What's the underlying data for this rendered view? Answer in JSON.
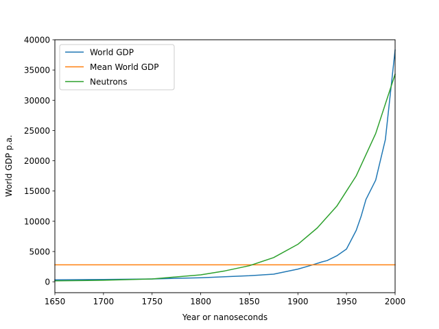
{
  "chart_data": {
    "type": "line",
    "title": "",
    "xlabel": "Year or nanoseconds",
    "ylabel": "World GDP p.a.",
    "xlim": [
      1650,
      2000
    ],
    "ylim": [
      -1800,
      40000
    ],
    "xticks": [
      1650,
      1700,
      1750,
      1800,
      1850,
      1900,
      1950,
      2000
    ],
    "yticks": [
      0,
      5000,
      10000,
      15000,
      20000,
      25000,
      30000,
      35000,
      40000
    ],
    "grid": false,
    "legend_position": "top-left",
    "series": [
      {
        "name": "World GDP",
        "color": "#1f77b4",
        "x": [
          1650,
          1700,
          1750,
          1800,
          1850,
          1875,
          1900,
          1913,
          1925,
          1930,
          1940,
          1950,
          1960,
          1965,
          1970,
          1980,
          1990,
          2000
        ],
        "y": [
          330,
          390,
          470,
          670,
          1000,
          1260,
          2100,
          2700,
          3300,
          3500,
          4300,
          5400,
          8500,
          10800,
          13600,
          16800,
          23500,
          38300
        ]
      },
      {
        "name": "Mean World GDP",
        "color": "#ff7f0e",
        "x": [
          1650,
          2000
        ],
        "y": [
          2800,
          2800
        ]
      },
      {
        "name": "Neutrons",
        "color": "#2ca02c",
        "x": [
          1650,
          1700,
          1750,
          1800,
          1825,
          1850,
          1875,
          1900,
          1920,
          1940,
          1960,
          1980,
          2000
        ],
        "y": [
          150,
          250,
          470,
          1150,
          1800,
          2650,
          4000,
          6200,
          8900,
          12500,
          17500,
          24500,
          34300
        ]
      }
    ]
  }
}
